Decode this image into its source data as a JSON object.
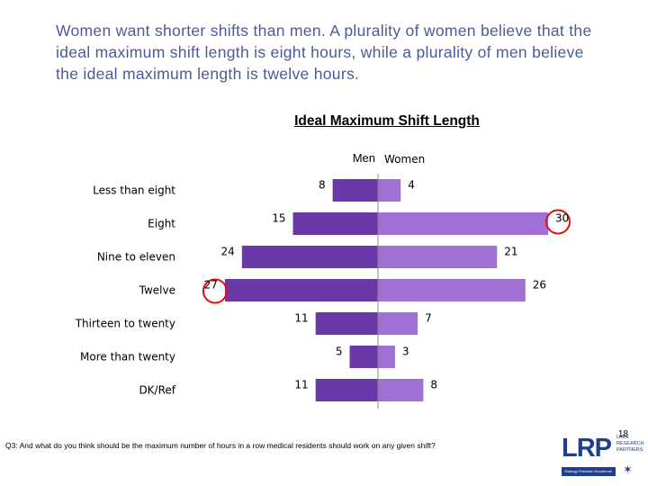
{
  "headline": "Women want shorter shifts than men. A plurality of women believe that the ideal maximum shift length is eight hours, while a plurality of men believe the ideal maximum length is twelve hours.",
  "chart_data": {
    "type": "bar",
    "orientation": "horizontal-butterfly",
    "title": "Ideal Maximum Shift Length",
    "categories": [
      "Less than eight",
      "Eight",
      "Nine to eleven",
      "Twelve",
      "Thirteen to twenty",
      "More than twenty",
      "DK/Ref"
    ],
    "series": [
      {
        "name": "Men",
        "values": [
          8,
          15,
          24,
          27,
          11,
          5,
          11
        ],
        "color": "#6a38a8"
      },
      {
        "name": "Women",
        "values": [
          4,
          30,
          21,
          26,
          7,
          3,
          8
        ],
        "color": "#a070d4"
      }
    ],
    "highlighted": [
      {
        "series": "Women",
        "category": "Eight"
      },
      {
        "series": "Men",
        "category": "Twelve"
      }
    ],
    "highlight_color": "#e01010",
    "legend_position": "top-center",
    "grid": false
  },
  "page_number": "18",
  "footnote": "Q3: And what do you think should be the maximum number of hours in a row medical residents should work on any given shift?",
  "logo": {
    "letters": "LRP",
    "words": "LAKE RESEARCH PARTNERS",
    "tagline": "Strategy  Precision  Excellence"
  }
}
